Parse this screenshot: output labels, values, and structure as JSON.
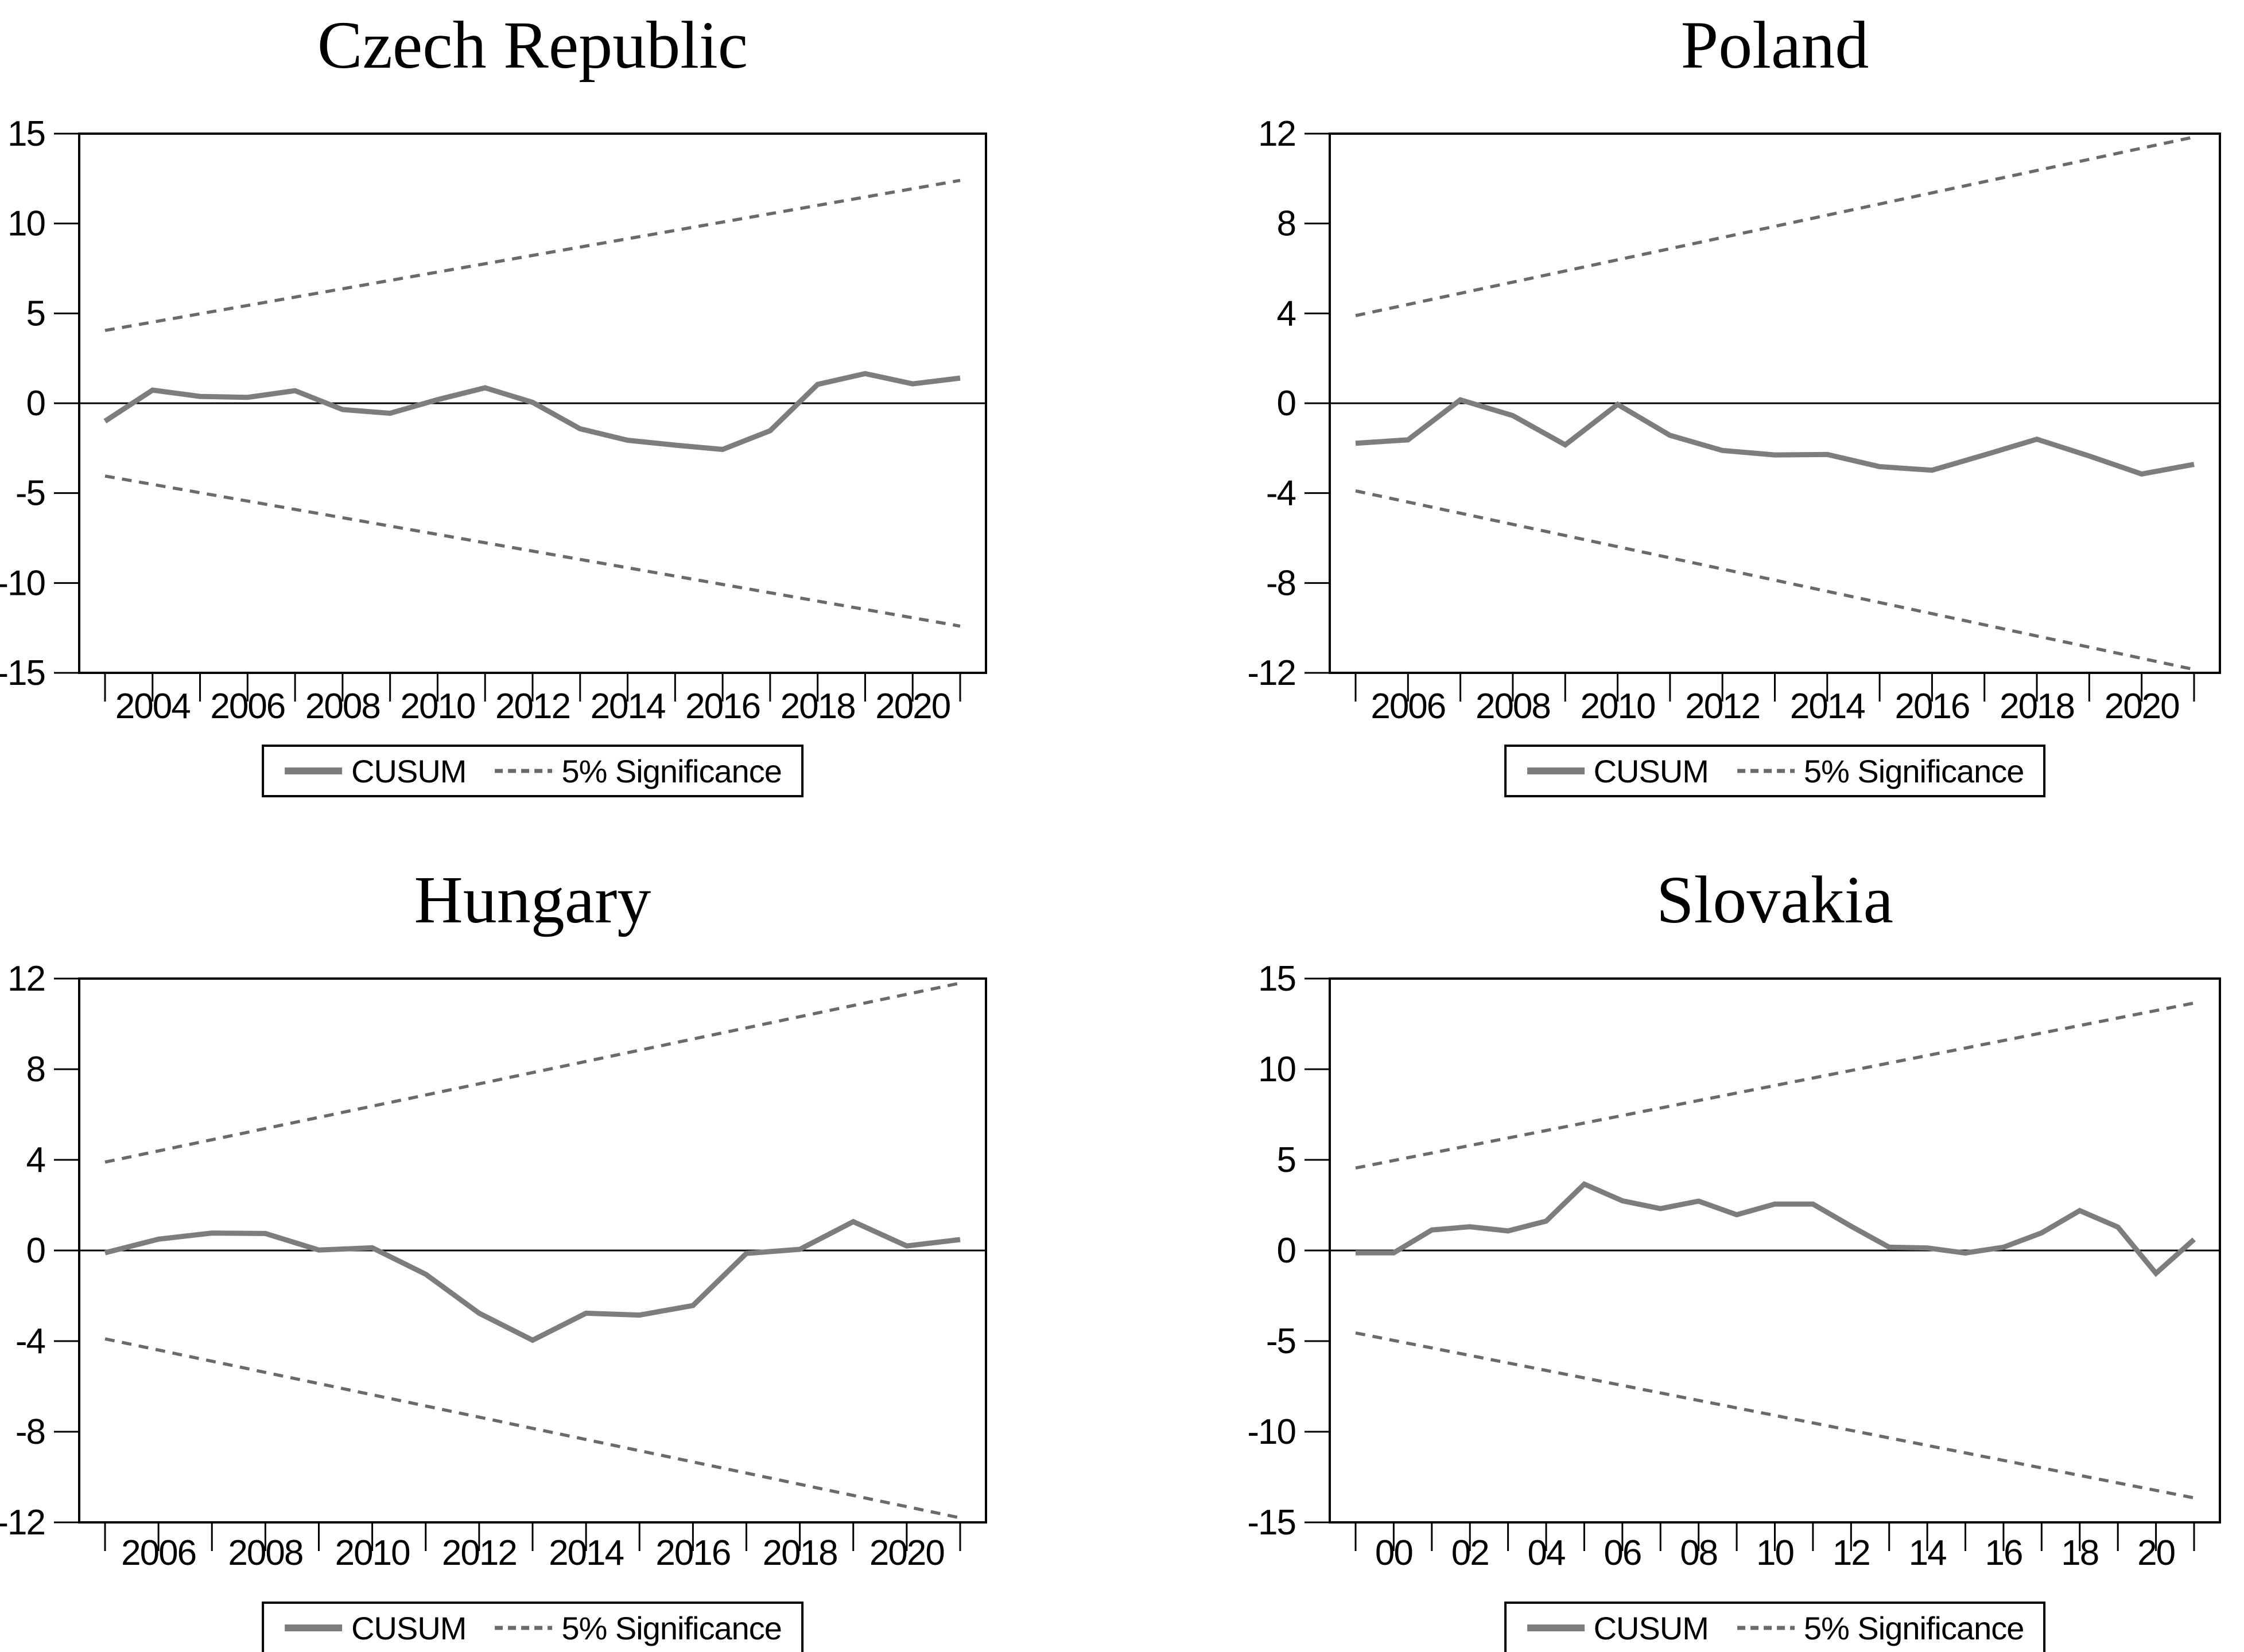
{
  "colors": {
    "background": "#ffffff",
    "axis": "#000000",
    "text": "#000000",
    "cusum": "#7d7d7d",
    "significance": "#6a6a6a"
  },
  "legend": {
    "cusum_label": "CUSUM",
    "significance_label": "5% Significance"
  },
  "chart_data": [
    {
      "type": "line",
      "title": "Czech Republic",
      "ylim": [
        -15,
        15
      ],
      "y_ticks": [
        15,
        10,
        5,
        0,
        -5,
        -10,
        -15
      ],
      "y_tick_labels": [
        "15",
        "10",
        "5",
        "0",
        "-5",
        "-10",
        "-15"
      ],
      "years": [
        2003,
        2004,
        2005,
        2006,
        2007,
        2008,
        2009,
        2010,
        2011,
        2012,
        2013,
        2014,
        2015,
        2016,
        2017,
        2018,
        2019,
        2020,
        2021
      ],
      "x_labels": [
        {
          "pos": 2004,
          "text": "2004"
        },
        {
          "pos": 2006,
          "text": "2006"
        },
        {
          "pos": 2008,
          "text": "2008"
        },
        {
          "pos": 2010,
          "text": "2010"
        },
        {
          "pos": 2012,
          "text": "2012"
        },
        {
          "pos": 2014,
          "text": "2014"
        },
        {
          "pos": 2016,
          "text": "2016"
        },
        {
          "pos": 2018,
          "text": "2018"
        },
        {
          "pos": 2020,
          "text": "2020"
        }
      ],
      "series": [
        {
          "name": "CUSUM",
          "values": [
            -1.0,
            0.73,
            0.38,
            0.33,
            0.7,
            -0.35,
            -0.56,
            0.2,
            0.86,
            0.05,
            -1.42,
            -2.06,
            -2.33,
            -2.57,
            -1.53,
            1.05,
            1.65,
            1.08,
            1.4
          ]
        },
        {
          "name": "5% Significance upper bound",
          "linear": {
            "start": 4.05,
            "end": 12.4
          }
        },
        {
          "name": "5% Significance lower bound",
          "linear": {
            "start": -4.05,
            "end": -12.4
          }
        }
      ],
      "grid": false,
      "legend_position": "bottom"
    },
    {
      "type": "line",
      "title": "Poland",
      "ylim": [
        -12,
        12
      ],
      "y_ticks": [
        12,
        8,
        4,
        0,
        -4,
        -8,
        -12
      ],
      "y_tick_labels": [
        "12",
        "8",
        "4",
        "0",
        "-4",
        "-8",
        "-12"
      ],
      "years": [
        2005,
        2006,
        2007,
        2008,
        2009,
        2010,
        2011,
        2012,
        2013,
        2014,
        2015,
        2016,
        2017,
        2018,
        2019,
        2020,
        2021
      ],
      "x_labels": [
        {
          "pos": 2006,
          "text": "2006"
        },
        {
          "pos": 2008,
          "text": "2008"
        },
        {
          "pos": 2010,
          "text": "2010"
        },
        {
          "pos": 2012,
          "text": "2012"
        },
        {
          "pos": 2014,
          "text": "2014"
        },
        {
          "pos": 2016,
          "text": "2016"
        },
        {
          "pos": 2018,
          "text": "2018"
        },
        {
          "pos": 2020,
          "text": "2020"
        }
      ],
      "series": [
        {
          "name": "CUSUM",
          "values": [
            -1.78,
            -1.63,
            0.15,
            -0.55,
            -1.85,
            -0.05,
            -1.43,
            -2.1,
            -2.3,
            -2.28,
            -2.82,
            -2.98,
            -2.3,
            -1.6,
            -2.35,
            -3.15,
            -2.72
          ]
        },
        {
          "name": "5% Significance upper bound",
          "linear": {
            "start": 3.9,
            "end": 11.85
          }
        },
        {
          "name": "5% Significance lower bound",
          "linear": {
            "start": -3.9,
            "end": -11.85
          }
        }
      ],
      "grid": false,
      "legend_position": "bottom"
    },
    {
      "type": "line",
      "title": "Hungary",
      "ylim": [
        -12,
        12
      ],
      "y_ticks": [
        12,
        8,
        4,
        0,
        -4,
        -8,
        -12
      ],
      "y_tick_labels": [
        "12",
        "8",
        "4",
        "0",
        "-4",
        "-8",
        "-12"
      ],
      "years": [
        2005,
        2006,
        2007,
        2008,
        2009,
        2010,
        2011,
        2012,
        2013,
        2014,
        2015,
        2016,
        2017,
        2018,
        2019,
        2020,
        2021
      ],
      "x_labels": [
        {
          "pos": 2006,
          "text": "2006"
        },
        {
          "pos": 2008,
          "text": "2008"
        },
        {
          "pos": 2010,
          "text": "2010"
        },
        {
          "pos": 2012,
          "text": "2012"
        },
        {
          "pos": 2014,
          "text": "2014"
        },
        {
          "pos": 2016,
          "text": "2016"
        },
        {
          "pos": 2018,
          "text": "2018"
        },
        {
          "pos": 2020,
          "text": "2020"
        }
      ],
      "series": [
        {
          "name": "CUSUM",
          "values": [
            -0.1,
            0.5,
            0.77,
            0.75,
            0.02,
            0.12,
            -1.05,
            -2.77,
            -3.96,
            -2.77,
            -2.85,
            -2.43,
            -0.13,
            0.05,
            1.27,
            0.2,
            0.48
          ]
        },
        {
          "name": "5% Significance upper bound",
          "linear": {
            "start": 3.9,
            "end": 11.8
          }
        },
        {
          "name": "5% Significance lower bound",
          "linear": {
            "start": -3.9,
            "end": -11.8
          }
        }
      ],
      "grid": false,
      "legend_position": "bottom"
    },
    {
      "type": "line",
      "title": "Slovakia",
      "ylim": [
        -15,
        15
      ],
      "y_ticks": [
        15,
        10,
        5,
        0,
        -5,
        -10,
        -15
      ],
      "y_tick_labels": [
        "15",
        "10",
        "5",
        "0",
        "-5",
        "-10",
        "-15"
      ],
      "years": [
        1999,
        2000,
        2001,
        2002,
        2003,
        2004,
        2005,
        2006,
        2007,
        2008,
        2009,
        2010,
        2011,
        2012,
        2013,
        2014,
        2015,
        2016,
        2017,
        2018,
        2019,
        2020,
        2021
      ],
      "x_labels": [
        {
          "pos": 2000,
          "text": "00"
        },
        {
          "pos": 2002,
          "text": "02"
        },
        {
          "pos": 2004,
          "text": "04"
        },
        {
          "pos": 2006,
          "text": "06"
        },
        {
          "pos": 2008,
          "text": "08"
        },
        {
          "pos": 2010,
          "text": "10"
        },
        {
          "pos": 2012,
          "text": "12"
        },
        {
          "pos": 2014,
          "text": "14"
        },
        {
          "pos": 2016,
          "text": "16"
        },
        {
          "pos": 2018,
          "text": "18"
        },
        {
          "pos": 2020,
          "text": "20"
        }
      ],
      "series": [
        {
          "name": "CUSUM",
          "values": [
            -0.13,
            -0.13,
            1.13,
            1.31,
            1.08,
            1.62,
            3.66,
            2.74,
            2.31,
            2.72,
            1.97,
            2.56,
            2.56,
            1.34,
            0.18,
            0.14,
            -0.14,
            0.18,
            0.97,
            2.2,
            1.29,
            -1.26,
            0.61
          ]
        },
        {
          "name": "5% Significance upper bound",
          "linear": {
            "start": 4.55,
            "end": 13.65
          }
        },
        {
          "name": "5% Significance lower bound",
          "linear": {
            "start": -4.55,
            "end": -13.65
          }
        }
      ],
      "grid": false,
      "legend_position": "bottom"
    }
  ]
}
